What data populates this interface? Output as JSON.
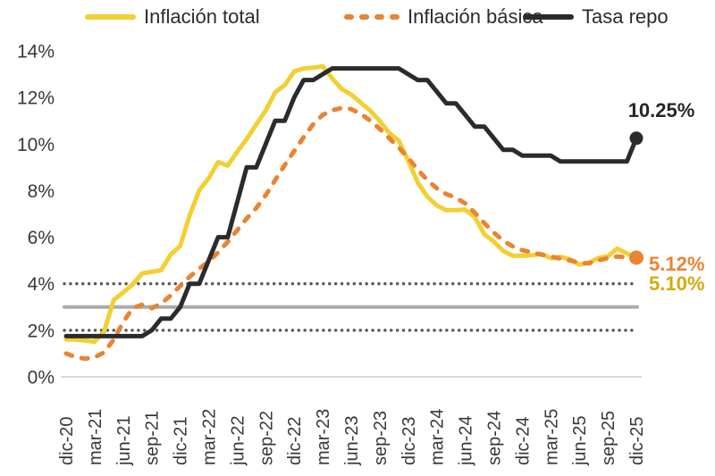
{
  "chart_data": {
    "type": "line",
    "title": "",
    "legend_position": "top",
    "grid": false,
    "x_frequency": "monthly",
    "x_range": "dic-20 a dic-25",
    "x_tick_labels": [
      "dic-20",
      "mar-21",
      "jun-21",
      "sep-21",
      "dic-21",
      "mar-22",
      "jun-22",
      "sep-22",
      "dic-22",
      "mar-23",
      "jun-23",
      "sep-23",
      "dic-23",
      "mar-24",
      "jun-24",
      "sep-24",
      "dic-24",
      "mar-25",
      "jun-25",
      "sep-25",
      "dic-25"
    ],
    "ylim": [
      0,
      14
    ],
    "y_ticks": [
      14,
      12,
      10,
      8,
      6,
      4,
      2,
      0
    ],
    "y_tick_suffix": "%",
    "series": [
      {
        "name": "Inflación total",
        "color": "#F2D033",
        "line_style": "solid",
        "end_marker": false,
        "end_value_label": "5.10%",
        "end_label_color": "#D1AC0B",
        "values": [
          1.61,
          1.6,
          1.56,
          1.51,
          1.95,
          3.3,
          3.63,
          3.97,
          4.44,
          4.51,
          4.58,
          5.26,
          5.62,
          6.94,
          8.01,
          8.53,
          9.23,
          9.07,
          9.67,
          10.21,
          10.84,
          11.44,
          12.22,
          12.53,
          13.12,
          13.25,
          13.28,
          13.34,
          12.82,
          12.36,
          12.13,
          11.78,
          11.43,
          10.99,
          10.48,
          10.15,
          9.28,
          8.35,
          7.74,
          7.36,
          7.16,
          7.16,
          7.18,
          6.86,
          6.12,
          5.81,
          5.41,
          5.2,
          5.2,
          5.22,
          5.28,
          5.09,
          5.16,
          5.05,
          4.82,
          4.9,
          5.1,
          5.18,
          5.51,
          5.3,
          5.1
        ]
      },
      {
        "name": "Inflación básica",
        "color": "#EA8332",
        "line_style": "dashed",
        "end_marker": true,
        "end_value_label": "5.12%",
        "end_label_color": "#EA8332",
        "values": [
          1.0,
          0.85,
          0.78,
          0.84,
          1.05,
          1.6,
          2.35,
          2.95,
          3.1,
          2.95,
          3.15,
          3.5,
          3.9,
          4.3,
          4.65,
          4.95,
          5.35,
          5.8,
          6.3,
          6.8,
          7.25,
          7.8,
          8.45,
          9.1,
          9.7,
          10.3,
          10.85,
          11.25,
          11.45,
          11.55,
          11.5,
          11.3,
          11.0,
          10.65,
          10.25,
          9.85,
          9.4,
          8.9,
          8.45,
          8.1,
          7.85,
          7.7,
          7.45,
          7.05,
          6.6,
          6.2,
          5.85,
          5.6,
          5.44,
          5.35,
          5.25,
          5.17,
          5.08,
          5.0,
          4.9,
          4.88,
          5.0,
          5.1,
          5.17,
          5.14,
          5.12
        ]
      },
      {
        "name": "Tasa repo",
        "color": "#2B2B2B",
        "line_style": "solid",
        "end_marker": true,
        "end_value_label": "10.25%",
        "end_label_color": "#262626",
        "values": [
          1.75,
          1.75,
          1.75,
          1.75,
          1.75,
          1.75,
          1.75,
          1.75,
          1.75,
          2.0,
          2.5,
          2.5,
          3.0,
          4.0,
          4.0,
          5.0,
          6.0,
          6.0,
          7.5,
          9.0,
          9.0,
          10.0,
          11.0,
          11.0,
          12.0,
          12.75,
          12.75,
          13.0,
          13.25,
          13.25,
          13.25,
          13.25,
          13.25,
          13.25,
          13.25,
          13.25,
          13.0,
          12.75,
          12.75,
          12.25,
          11.75,
          11.75,
          11.25,
          10.75,
          10.75,
          10.25,
          9.75,
          9.75,
          9.5,
          9.5,
          9.5,
          9.5,
          9.25,
          9.25,
          9.25,
          9.25,
          9.25,
          9.25,
          9.25,
          9.25,
          10.25
        ]
      }
    ],
    "reference_lines": [
      {
        "value": 4,
        "style": "dotted",
        "color": "#595959"
      },
      {
        "value": 3,
        "style": "solid",
        "color": "#ABABAB"
      },
      {
        "value": 2,
        "style": "dotted",
        "color": "#595959"
      }
    ],
    "axis_line_color": "#D9D9D9",
    "axis_text_color": "#383838"
  }
}
